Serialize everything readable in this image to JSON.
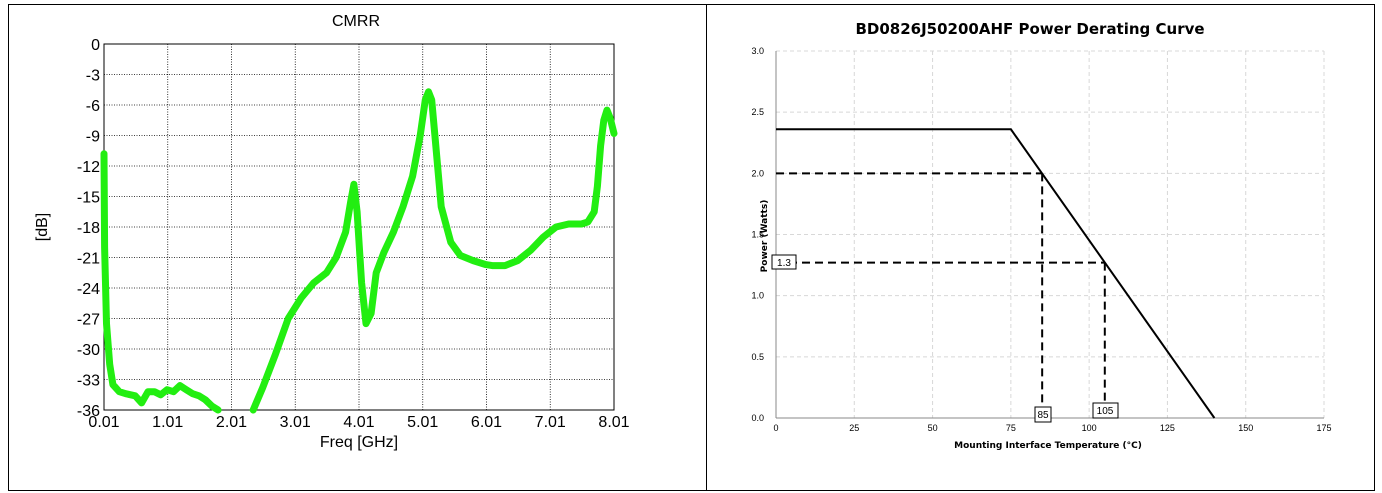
{
  "chart_data": [
    {
      "type": "line",
      "title": "CMRR",
      "xlabel": "Freq [GHz]",
      "ylabel": "[dB]",
      "xlim": [
        0.01,
        8.01
      ],
      "ylim": [
        -36,
        0
      ],
      "x_ticks": [
        "0.01",
        "1.01",
        "2.01",
        "3.01",
        "4.01",
        "5.01",
        "6.01",
        "7.01",
        "8.01"
      ],
      "y_ticks": [
        "0",
        "-3",
        "-6",
        "-9",
        "-12",
        "-15",
        "-18",
        "-21",
        "-24",
        "-27",
        "-30",
        "-33",
        "-36"
      ],
      "grid": true,
      "line_color": "#22ee11",
      "series": [
        {
          "x": [
            0.01,
            0.02,
            0.05,
            0.1,
            0.15,
            0.25,
            0.35,
            0.5,
            0.6,
            0.7,
            0.8,
            0.9,
            1.0,
            1.1,
            1.2,
            1.3,
            1.4,
            1.5,
            1.6,
            1.7,
            1.8,
            2.35,
            2.5,
            2.7,
            2.9,
            3.1,
            3.3,
            3.5,
            3.65,
            3.8,
            3.88,
            3.93,
            3.98,
            4.05,
            4.12,
            4.2,
            4.28,
            4.4,
            4.55,
            4.7,
            4.85,
            4.97,
            5.05,
            5.1,
            5.15,
            5.2,
            5.3,
            5.45,
            5.6,
            5.8,
            6.0,
            6.1,
            6.3,
            6.5,
            6.7,
            6.9,
            7.1,
            7.3,
            7.5,
            7.6,
            7.7,
            7.75,
            7.8,
            7.85,
            7.9,
            7.95,
            8.01
          ],
          "y": [
            -10.8,
            -20,
            -27.5,
            -31.5,
            -33.5,
            -34.2,
            -34.4,
            -34.6,
            -35.3,
            -34.2,
            -34.2,
            -34.5,
            -34.0,
            -34.2,
            -33.6,
            -34.0,
            -34.4,
            -34.6,
            -35.0,
            -35.6,
            -36.0,
            -36.0,
            -33.8,
            -30.5,
            -27.0,
            -25.0,
            -23.5,
            -22.5,
            -21.0,
            -18.5,
            -15.5,
            -13.8,
            -16.5,
            -23.5,
            -27.5,
            -26.5,
            -22.5,
            -20.5,
            -18.5,
            -16.0,
            -13.0,
            -9.0,
            -5.5,
            -4.7,
            -5.5,
            -9.0,
            -16.0,
            -19.5,
            -20.8,
            -21.3,
            -21.7,
            -21.8,
            -21.8,
            -21.3,
            -20.3,
            -19.0,
            -18.0,
            -17.7,
            -17.7,
            -17.5,
            -16.5,
            -14.0,
            -10.0,
            -7.5,
            -6.5,
            -7.3,
            -8.8
          ]
        }
      ]
    },
    {
      "type": "line",
      "title": "BD0826J50200AHF Power Derating Curve",
      "xlabel": "Mounting Interface Temperature (°C)",
      "ylabel": "Power (Watts)",
      "xlim": [
        0,
        175
      ],
      "ylim": [
        0.0,
        3.0
      ],
      "x_ticks": [
        "0",
        "25",
        "50",
        "75",
        "100",
        "125",
        "150",
        "175"
      ],
      "y_ticks": [
        "0.0",
        "0.5",
        "1.0",
        "1.5",
        "2.0",
        "2.5",
        "3.0"
      ],
      "grid": true,
      "series": [
        {
          "x": [
            0,
            75,
            140
          ],
          "y": [
            2.36,
            2.36,
            0.0
          ]
        }
      ],
      "annotations": {
        "label_85": "85",
        "label_105": "105",
        "label_13": "1.3"
      },
      "reference_lines": [
        {
          "x": 85,
          "y": 2.0
        },
        {
          "x": 105,
          "y": 1.27
        }
      ]
    }
  ]
}
